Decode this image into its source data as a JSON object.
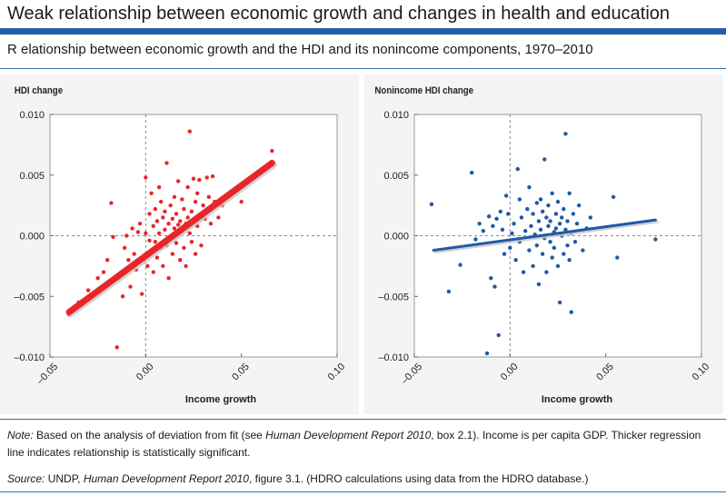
{
  "header": {
    "title": "Weak relationship between economic growth and changes in health and education",
    "subtitle": "R elationship between economic growth and the HDI and its nonincome components, 1970–2010"
  },
  "colors": {
    "accent_rule": "#1e5fa8",
    "left_series": "#e8262a",
    "right_series": "#1f5aa6",
    "panel_bg": "#f4f4f4"
  },
  "chart_data": [
    {
      "type": "scatter",
      "ylabel": "HDI change",
      "xlabel": "Income growth",
      "xlim": [
        -0.05,
        0.1
      ],
      "ylim": [
        -0.01,
        0.01
      ],
      "xticks": [
        "–0.05",
        "0.00",
        "0.05",
        "0.10"
      ],
      "yticks": [
        "0.010",
        "0.005",
        "0.000",
        "–0.005",
        "–0.010"
      ],
      "grid": "dashed at zero",
      "regression": {
        "x1": -0.04,
        "y1": -0.0063,
        "x2": 0.066,
        "y2": 0.006,
        "thick": true
      },
      "points": [
        [
          -0.04,
          -0.0065
        ],
        [
          -0.035,
          -0.0055
        ],
        [
          -0.03,
          -0.0045
        ],
        [
          -0.025,
          -0.0035
        ],
        [
          -0.022,
          -0.003
        ],
        [
          -0.02,
          -0.002
        ],
        [
          -0.018,
          0.0027
        ],
        [
          -0.017,
          -0.0001
        ],
        [
          -0.015,
          -0.0092
        ],
        [
          -0.014,
          -0.0035
        ],
        [
          -0.012,
          -0.005
        ],
        [
          -0.011,
          -0.001
        ],
        [
          -0.01,
          0.0
        ],
        [
          -0.009,
          -0.002
        ],
        [
          -0.008,
          -0.0042
        ],
        [
          -0.007,
          0.0006
        ],
        [
          -0.006,
          -0.0015
        ],
        [
          -0.005,
          -0.0028
        ],
        [
          -0.004,
          0.0003
        ],
        [
          -0.003,
          0.001
        ],
        [
          -0.002,
          -0.0048
        ],
        [
          -0.001,
          -0.002
        ],
        [
          0.0,
          0.0048
        ],
        [
          0.0,
          0.0002
        ],
        [
          0.001,
          -0.0025
        ],
        [
          0.002,
          0.0018
        ],
        [
          0.002,
          -0.0004
        ],
        [
          0.003,
          0.0035
        ],
        [
          0.003,
          -0.0012
        ],
        [
          0.004,
          0.0008
        ],
        [
          0.004,
          -0.003
        ],
        [
          0.005,
          0.0022
        ],
        [
          0.005,
          -0.0005
        ],
        [
          0.006,
          0.0012
        ],
        [
          0.006,
          -0.0018
        ],
        [
          0.007,
          0.004
        ],
        [
          0.007,
          0.0002
        ],
        [
          0.008,
          -0.001
        ],
        [
          0.008,
          0.0028
        ],
        [
          0.009,
          0.0015
        ],
        [
          0.009,
          -0.0025
        ],
        [
          0.01,
          0.0005
        ],
        [
          0.01,
          0.002
        ],
        [
          0.011,
          -0.0008
        ],
        [
          0.011,
          0.006
        ],
        [
          0.012,
          0.001
        ],
        [
          0.012,
          -0.0035
        ],
        [
          0.013,
          0.0025
        ],
        [
          0.013,
          -0.0002
        ],
        [
          0.014,
          0.0014
        ],
        [
          0.014,
          -0.0015
        ],
        [
          0.015,
          0.0032
        ],
        [
          0.015,
          0.0006
        ],
        [
          0.016,
          -0.0006
        ],
        [
          0.016,
          0.0018
        ],
        [
          0.017,
          0.0045
        ],
        [
          0.017,
          0.0009
        ],
        [
          0.018,
          -0.002
        ],
        [
          0.018,
          0.0012
        ],
        [
          0.019,
          0.003
        ],
        [
          0.019,
          0.0004
        ],
        [
          0.02,
          -0.001
        ],
        [
          0.02,
          0.0022
        ],
        [
          0.021,
          0.001
        ],
        [
          0.021,
          -0.0025
        ],
        [
          0.022,
          0.0015
        ],
        [
          0.022,
          0.004
        ],
        [
          0.023,
          0.0002
        ],
        [
          0.023,
          0.0086
        ],
        [
          0.024,
          0.002
        ],
        [
          0.024,
          -0.0005
        ],
        [
          0.025,
          0.0047
        ],
        [
          0.025,
          0.0012
        ],
        [
          0.026,
          0.0028
        ],
        [
          0.026,
          -0.0015
        ],
        [
          0.027,
          0.0035
        ],
        [
          0.027,
          0.0008
        ],
        [
          0.028,
          0.0046
        ],
        [
          0.029,
          0.0018
        ],
        [
          0.029,
          -0.0008
        ],
        [
          0.03,
          0.0025
        ],
        [
          0.031,
          0.0014
        ],
        [
          0.032,
          0.0048
        ],
        [
          0.033,
          0.0032
        ],
        [
          0.034,
          0.001
        ],
        [
          0.035,
          0.0049
        ],
        [
          0.036,
          0.0028
        ],
        [
          0.038,
          0.0015
        ],
        [
          0.04,
          0.0025
        ],
        [
          0.048,
          0.0038
        ],
        [
          0.05,
          0.0028
        ],
        [
          0.066,
          0.007
        ]
      ]
    },
    {
      "type": "scatter",
      "ylabel": "Nonincome HDI change",
      "xlabel": "Income growth",
      "xlim": [
        -0.05,
        0.1
      ],
      "ylim": [
        -0.01,
        0.01
      ],
      "xticks": [
        "–0.05",
        "0.00",
        "0.05",
        "0.10"
      ],
      "yticks": [
        "0.010",
        "0.005",
        "0.000",
        "–0.005",
        "–0.010"
      ],
      "grid": "dashed at zero",
      "regression": {
        "x1": -0.04,
        "y1": -0.0012,
        "x2": 0.076,
        "y2": 0.0013,
        "thick": false
      },
      "points": [
        [
          -0.041,
          0.0026
        ],
        [
          -0.032,
          -0.0046
        ],
        [
          -0.026,
          -0.0024
        ],
        [
          -0.02,
          0.0052
        ],
        [
          -0.018,
          -0.0003
        ],
        [
          -0.016,
          0.001
        ],
        [
          -0.014,
          0.0004
        ],
        [
          -0.012,
          -0.0097
        ],
        [
          -0.011,
          0.0016
        ],
        [
          -0.01,
          -0.0035
        ],
        [
          -0.009,
          0.0008
        ],
        [
          -0.008,
          -0.0042
        ],
        [
          -0.007,
          0.0014
        ],
        [
          -0.006,
          -0.0082
        ],
        [
          -0.005,
          0.002
        ],
        [
          -0.004,
          0.0005
        ],
        [
          -0.003,
          -0.0015
        ],
        [
          -0.002,
          0.0033
        ],
        [
          -0.001,
          0.0018
        ],
        [
          0.0,
          -0.001
        ],
        [
          0.001,
          0.0002
        ],
        [
          0.002,
          0.001
        ],
        [
          0.003,
          -0.002
        ],
        [
          0.004,
          0.0055
        ],
        [
          0.005,
          0.003
        ],
        [
          0.005,
          -0.0005
        ],
        [
          0.006,
          0.0015
        ],
        [
          0.007,
          -0.003
        ],
        [
          0.008,
          0.0004
        ],
        [
          0.009,
          0.0022
        ],
        [
          0.01,
          -0.0012
        ],
        [
          0.01,
          0.004
        ],
        [
          0.011,
          0.0008
        ],
        [
          0.012,
          -0.0025
        ],
        [
          0.012,
          0.0018
        ],
        [
          0.013,
          0.0001
        ],
        [
          0.014,
          0.0027
        ],
        [
          0.014,
          -0.0008
        ],
        [
          0.015,
          0.0012
        ],
        [
          0.015,
          -0.004
        ],
        [
          0.016,
          0.0005
        ],
        [
          0.016,
          0.003
        ],
        [
          0.017,
          -0.0015
        ],
        [
          0.017,
          0.002
        ],
        [
          0.018,
          0.0063
        ],
        [
          0.018,
          -0.0002
        ],
        [
          0.019,
          0.0015
        ],
        [
          0.019,
          -0.003
        ],
        [
          0.02,
          0.0008
        ],
        [
          0.02,
          0.0025
        ],
        [
          0.021,
          -0.0005
        ],
        [
          0.021,
          0.0012
        ],
        [
          0.022,
          -0.0018
        ],
        [
          0.022,
          0.0035
        ],
        [
          0.023,
          0.0003
        ],
        [
          0.023,
          -0.001
        ],
        [
          0.024,
          0.0018
        ],
        [
          0.024,
          0.0006
        ],
        [
          0.025,
          -0.0025
        ],
        [
          0.025,
          0.0028
        ],
        [
          0.026,
          0.001
        ],
        [
          0.026,
          -0.0055
        ],
        [
          0.027,
          0.0
        ],
        [
          0.027,
          0.0015
        ],
        [
          0.028,
          -0.0015
        ],
        [
          0.028,
          0.0022
        ],
        [
          0.029,
          0.0005
        ],
        [
          0.029,
          0.0084
        ],
        [
          0.03,
          -0.0008
        ],
        [
          0.03,
          0.0012
        ],
        [
          0.031,
          0.0035
        ],
        [
          0.031,
          -0.002
        ],
        [
          0.032,
          0.0002
        ],
        [
          0.032,
          -0.0063
        ],
        [
          0.033,
          0.0018
        ],
        [
          0.034,
          -0.0005
        ],
        [
          0.035,
          0.001
        ],
        [
          0.036,
          0.0025
        ],
        [
          0.038,
          -0.0012
        ],
        [
          0.04,
          0.0006
        ],
        [
          0.042,
          0.0015
        ],
        [
          0.054,
          0.0032
        ],
        [
          0.056,
          -0.0018
        ],
        [
          0.076,
          -0.0003
        ]
      ]
    }
  ],
  "notes": {
    "note_label": "Note:",
    "note_text_1": " Based on the analysis of deviation from fit (see ",
    "note_italic": "Human Development Report 2010",
    "note_text_2": ", box 2.1). Income is per capita GDP. Thicker regression line indicates relationship is statistically significant.",
    "source_label": "Source:",
    "source_text_1": " UNDP, ",
    "source_italic": "Human Development Report 2010",
    "source_text_2": ", figure 3.1. (HDRO calculations using data from the HDRO database.)"
  }
}
